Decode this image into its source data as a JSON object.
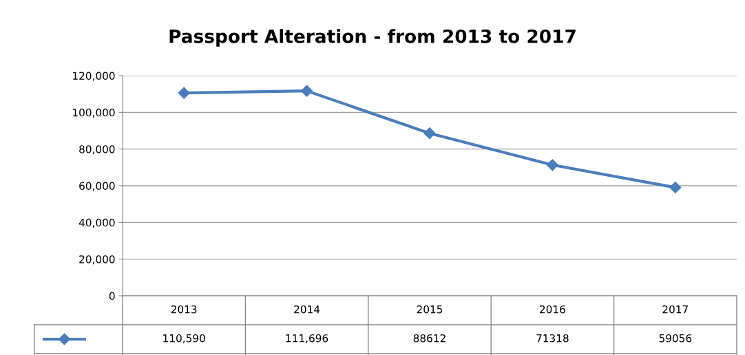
{
  "chart_data": {
    "type": "line",
    "title": "Passport Alteration - from 2013 to 2017",
    "categories": [
      "2013",
      "2014",
      "2015",
      "2016",
      "2017"
    ],
    "series": [
      {
        "color": "#4a7ebb",
        "values": [
          110590,
          111696,
          88612,
          71318,
          59056
        ],
        "value_labels": [
          "110,590",
          "111,696",
          "88612",
          "71318",
          "59056"
        ]
      }
    ],
    "ylim": [
      0,
      120000
    ],
    "yticks": [
      0,
      {
        "value": 20000,
        "label": "20,000"
      },
      {
        "value": 40000,
        "label": "40,000"
      },
      {
        "value": 60000,
        "label": "60,000"
      },
      {
        "value": 80000,
        "label": "80,000"
      },
      {
        "value": 100000,
        "label": "100,000"
      },
      {
        "value": 120000,
        "label": "120,000"
      }
    ],
    "grid": "y",
    "marker": "diamond",
    "line_style": "solid",
    "legend": false
  }
}
